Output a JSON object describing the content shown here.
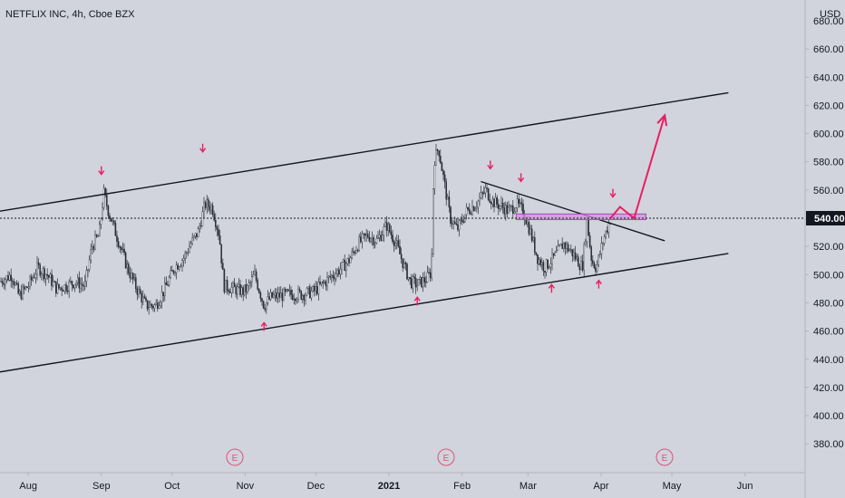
{
  "header": {
    "symbol_label": "NETFLIX INC, 4h, Cboe BZX",
    "currency": "USD"
  },
  "price_badge": {
    "value": "540.00",
    "bg": "#131722",
    "fg": "#ffffff"
  },
  "earnings_marker": {
    "label": "E",
    "color": "#e0507a",
    "dates": [
      "Oct 20",
      "Jan 19",
      "Apr 20"
    ]
  },
  "colors": {
    "background": "#d1d4dc",
    "candle": "#2a2e39",
    "trendline": "#131722",
    "annotation": "#e91e63",
    "zone_fill": "#ce93d8",
    "zone_stroke": "#ab47bc",
    "axis_text": "#131722"
  },
  "chart_data": {
    "type": "candlestick",
    "symbol": "NETFLIX INC",
    "interval": "4h",
    "exchange": "Cboe BZX",
    "y_axis": {
      "unit": "USD",
      "ylim": [
        350,
        680
      ],
      "ticks": [
        380,
        400,
        420,
        440,
        460,
        480,
        500,
        520,
        540,
        560,
        580,
        600,
        620,
        640,
        660
      ],
      "tick_labels": [
        "380.00",
        "400.00",
        "420.00",
        "440.00",
        "460.00",
        "480.00",
        "500.00",
        "520.00",
        "540.00",
        "560.00",
        "580.00",
        "600.00",
        "620.00",
        "640.00",
        "660.00"
      ],
      "top_partial_label": "680.00"
    },
    "x_axis": {
      "range": [
        "2020-07-20",
        "2021-06-10"
      ],
      "ticks": [
        {
          "date": "2020-08-01",
          "label": "Aug"
        },
        {
          "date": "2020-09-01",
          "label": "Sep"
        },
        {
          "date": "2020-10-01",
          "label": "Oct"
        },
        {
          "date": "2020-11-01",
          "label": "Nov"
        },
        {
          "date": "2020-12-01",
          "label": "Dec"
        },
        {
          "date": "2021-01-01",
          "label": "2021"
        },
        {
          "date": "2021-02-01",
          "label": "Feb"
        },
        {
          "date": "2021-03-01",
          "label": "Mar"
        },
        {
          "date": "2021-04-01",
          "label": "Apr"
        },
        {
          "date": "2021-05-01",
          "label": "May"
        },
        {
          "date": "2021-06-01",
          "label": "Jun"
        }
      ]
    },
    "current_price": 540,
    "price_path": [
      [
        "2020-07-20",
        495
      ],
      [
        "2020-07-25",
        500
      ],
      [
        "2020-07-28",
        485
      ],
      [
        "2020-08-01",
        492
      ],
      [
        "2020-08-05",
        505
      ],
      [
        "2020-08-09",
        500
      ],
      [
        "2020-08-13",
        490
      ],
      [
        "2020-08-17",
        492
      ],
      [
        "2020-08-21",
        495
      ],
      [
        "2020-08-25",
        492
      ],
      [
        "2020-08-28",
        520
      ],
      [
        "2020-08-31",
        528
      ],
      [
        "2020-09-02",
        558
      ],
      [
        "2020-09-04",
        545
      ],
      [
        "2020-09-08",
        525
      ],
      [
        "2020-09-12",
        505
      ],
      [
        "2020-09-16",
        490
      ],
      [
        "2020-09-20",
        478
      ],
      [
        "2020-09-24",
        478
      ],
      [
        "2020-09-28",
        490
      ],
      [
        "2020-10-02",
        505
      ],
      [
        "2020-10-06",
        512
      ],
      [
        "2020-10-09",
        522
      ],
      [
        "2020-10-12",
        530
      ],
      [
        "2020-10-15",
        550
      ],
      [
        "2020-10-18",
        548
      ],
      [
        "2020-10-21",
        528
      ],
      [
        "2020-10-23",
        492
      ],
      [
        "2020-10-27",
        490
      ],
      [
        "2020-10-31",
        488
      ],
      [
        "2020-11-02",
        490
      ],
      [
        "2020-11-05",
        500
      ],
      [
        "2020-11-09",
        478
      ],
      [
        "2020-11-12",
        484
      ],
      [
        "2020-11-16",
        485
      ],
      [
        "2020-11-20",
        486
      ],
      [
        "2020-11-25",
        486
      ],
      [
        "2020-11-30",
        488
      ],
      [
        "2020-12-03",
        492
      ],
      [
        "2020-12-07",
        498
      ],
      [
        "2020-12-10",
        502
      ],
      [
        "2020-12-15",
        510
      ],
      [
        "2020-12-19",
        522
      ],
      [
        "2020-12-23",
        528
      ],
      [
        "2020-12-27",
        524
      ],
      [
        "2020-12-31",
        535
      ],
      [
        "2021-01-04",
        522
      ],
      [
        "2021-01-07",
        508
      ],
      [
        "2021-01-10",
        495
      ],
      [
        "2021-01-13",
        493
      ],
      [
        "2021-01-17",
        497
      ],
      [
        "2021-01-19",
        502
      ],
      [
        "2021-01-20",
        580
      ],
      [
        "2021-01-22",
        590
      ],
      [
        "2021-01-25",
        560
      ],
      [
        "2021-01-27",
        540
      ],
      [
        "2021-01-30",
        532
      ],
      [
        "2021-02-03",
        545
      ],
      [
        "2021-02-07",
        550
      ],
      [
        "2021-02-11",
        560
      ],
      [
        "2021-02-14",
        552
      ],
      [
        "2021-02-18",
        548
      ],
      [
        "2021-02-21",
        545
      ],
      [
        "2021-02-24",
        550
      ],
      [
        "2021-02-27",
        545
      ],
      [
        "2021-03-02",
        530
      ],
      [
        "2021-03-05",
        512
      ],
      [
        "2021-03-08",
        505
      ],
      [
        "2021-03-12",
        512
      ],
      [
        "2021-03-16",
        522
      ],
      [
        "2021-03-20",
        515
      ],
      [
        "2021-03-22",
        510
      ],
      [
        "2021-03-24",
        505
      ],
      [
        "2021-03-26",
        538
      ],
      [
        "2021-03-28",
        510
      ],
      [
        "2021-03-30",
        505
      ],
      [
        "2021-04-02",
        525
      ],
      [
        "2021-04-05",
        540
      ]
    ],
    "trendlines": [
      {
        "name": "channel-upper",
        "start": [
          "2020-07-20",
          545
        ],
        "end": [
          "2021-05-25",
          629
        ]
      },
      {
        "name": "channel-lower",
        "start": [
          "2020-07-20",
          431
        ],
        "end": [
          "2021-05-25",
          515
        ]
      },
      {
        "name": "descending-resistance",
        "start": [
          "2021-02-09",
          566
        ],
        "end": [
          "2021-04-28",
          524
        ]
      }
    ],
    "zone": {
      "start": "2021-02-24",
      "end": "2021-04-20",
      "low": 539,
      "high": 543
    },
    "projection": [
      [
        "2021-04-05",
        540
      ],
      [
        "2021-04-09",
        548
      ],
      [
        "2021-04-15",
        540
      ],
      [
        "2021-04-28",
        613
      ]
    ],
    "arrows_down": [
      {
        "date": "2020-09-01",
        "price": 573
      },
      {
        "date": "2020-10-14",
        "price": 589
      },
      {
        "date": "2021-02-13",
        "price": 577
      },
      {
        "date": "2021-02-26",
        "price": 568
      },
      {
        "date": "2021-04-06",
        "price": 557
      }
    ],
    "arrows_up": [
      {
        "date": "2020-11-09",
        "price": 464
      },
      {
        "date": "2021-01-13",
        "price": 482
      },
      {
        "date": "2021-03-11",
        "price": 491
      },
      {
        "date": "2021-03-31",
        "price": 494
      }
    ]
  }
}
